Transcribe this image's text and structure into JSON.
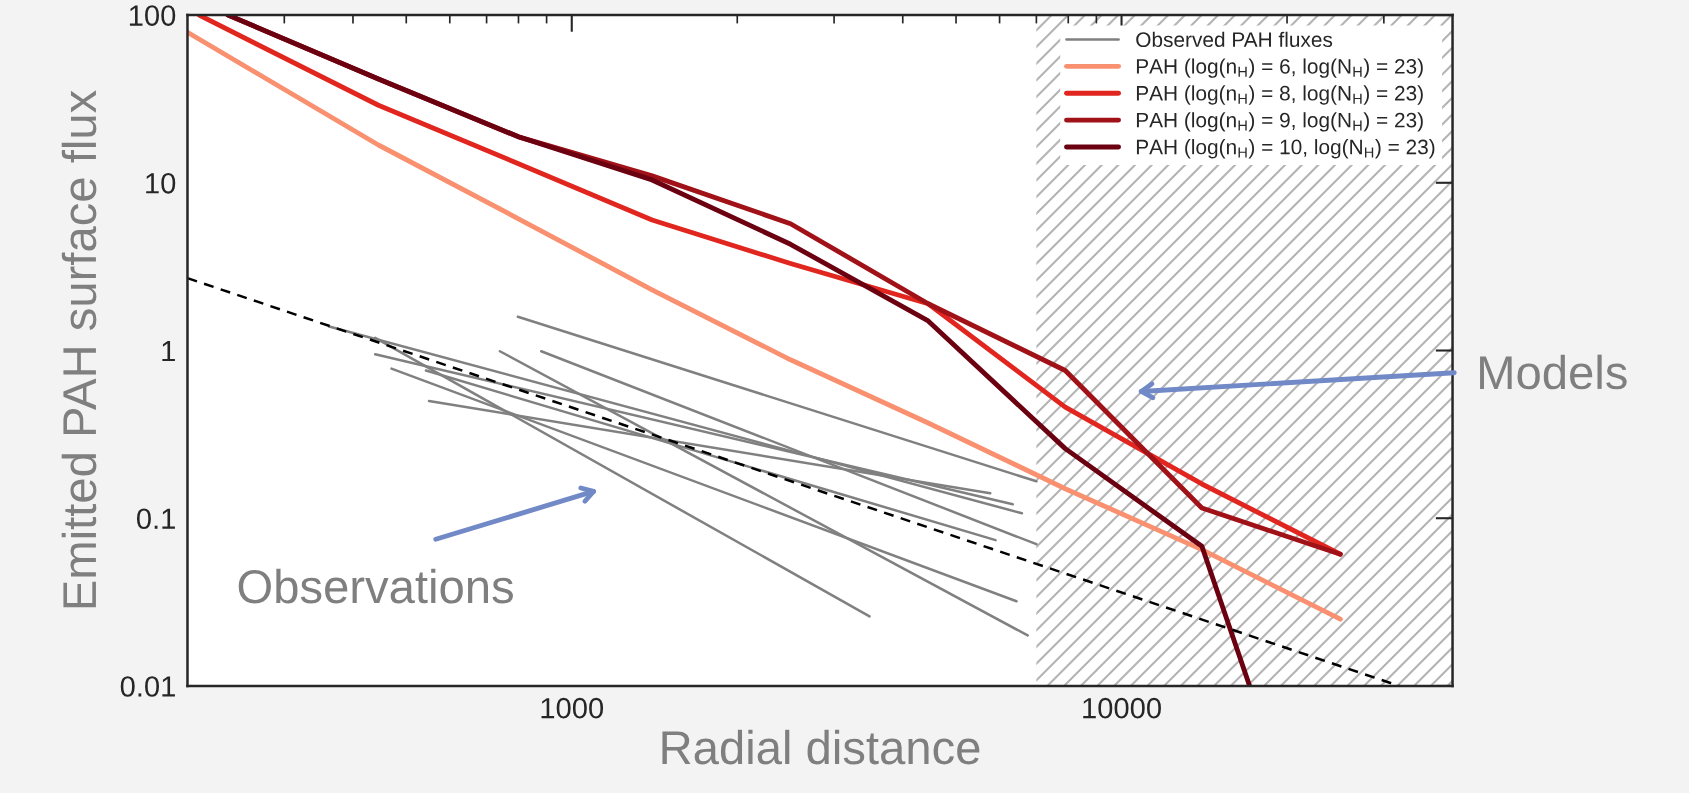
{
  "chart_data": {
    "type": "line",
    "xlabel": "Radial distance",
    "ylabel": "Emitted PAH surface flux",
    "log": "xy",
    "legend": "top right",
    "xlim": [
      200,
      40000
    ],
    "ylim": [
      0.01,
      100
    ],
    "xticks": [
      {
        "value": 300,
        "label": null
      },
      {
        "value": 400,
        "label": null
      },
      {
        "value": 500,
        "label": null
      },
      {
        "value": 600,
        "label": null
      },
      {
        "value": 700,
        "label": null
      },
      {
        "value": 800,
        "label": null
      },
      {
        "value": 900,
        "label": null
      },
      1000,
      {
        "value": 2000,
        "label": null
      },
      {
        "value": 3000,
        "label": null
      },
      {
        "value": 4000,
        "label": null
      },
      {
        "value": 5000,
        "label": null
      },
      {
        "value": 6000,
        "label": null
      },
      {
        "value": 7000,
        "label": null
      },
      {
        "value": 8000,
        "label": null
      },
      {
        "value": 9000,
        "label": null
      },
      10000,
      {
        "value": 20000,
        "label": null
      },
      {
        "value": 30000,
        "label": null
      }
    ],
    "yticks": [
      0.01,
      0.1,
      1,
      10,
      100
    ],
    "bands": [
      {
        "axis": "x",
        "from": 7000,
        "to": 40000,
        "color": "#b4b4b4"
      }
    ],
    "annotations": [
      "Observations",
      "Models"
    ],
    "series": [
      {
        "name": "Observed PAH fluxes",
        "color": "#808080",
        "x": [
          362,
          6590
        ],
        "values": [
          1.39,
          0.107
        ]
      },
      {
        "color": "#808080",
        "x": [
          439,
          6340
        ],
        "values": [
          0.95,
          0.121
        ]
      },
      {
        "color": "#808080",
        "x": [
          439,
          3480
        ],
        "values": [
          1.19,
          0.026
        ]
      },
      {
        "color": "#808080",
        "x": [
          470,
          6440
        ],
        "values": [
          0.78,
          0.032
        ]
      },
      {
        "color": "#808080",
        "x": [
          543,
          5900
        ],
        "values": [
          0.76,
          0.074
        ]
      },
      {
        "color": "#808080",
        "x": [
          550,
          5770
        ],
        "values": [
          0.5,
          0.141
        ]
      },
      {
        "color": "#808080",
        "x": [
          740,
          6750
        ],
        "values": [
          0.99,
          0.02
        ]
      },
      {
        "color": "#808080",
        "x": [
          880,
          7000
        ],
        "values": [
          0.99,
          0.07
        ]
      },
      {
        "color": "#808080",
        "x": [
          798,
          7000
        ],
        "values": [
          1.59,
          0.166
        ]
      },
      {
        "name": "PAH (log(n$_{H}$) = 6, log(N$_{H}$) = 23)",
        "color": "#f9906f",
        "x": [
          200,
          445,
          800,
          1400,
          2500,
          4450,
          7900,
          14000,
          25000
        ],
        "values": [
          79,
          16.8,
          6.1,
          2.3,
          0.88,
          0.37,
          0.15,
          0.065,
          0.025
        ]
      },
      {
        "name": "PAH (log(n$_{H}$) = 8, log(N$_{H}$) = 23)",
        "color": "#e0261f",
        "x": [
          210,
          445,
          800,
          1400,
          2500,
          4450,
          7900,
          14000,
          25000
        ],
        "values": [
          100,
          29,
          13,
          6.0,
          3.3,
          1.9,
          0.46,
          0.16,
          0.061
        ]
      },
      {
        "name": "PAH (log(n$_{H}$) = 9, log(N$_{H}$) = 23)",
        "color": "#a01218",
        "x": [
          237,
          445,
          800,
          1400,
          2500,
          4450,
          7900,
          14000,
          25000
        ],
        "values": [
          100,
          41.6,
          18.8,
          11,
          5.7,
          1.9,
          0.76,
          0.115,
          0.061
        ]
      },
      {
        "name": "PAH (log(n$_{H}$) = 10, log(N$_{H}$) = 23)",
        "color": "#6b0010",
        "x": [
          237,
          445,
          800,
          1400,
          2500,
          4450,
          7900,
          14000,
          17100
        ],
        "values": [
          100,
          41.6,
          18.8,
          10.4,
          4.3,
          1.5,
          0.26,
          0.068,
          0.01
        ]
      },
      {
        "color": "#000000",
        "line_style": "dashed",
        "x": [
          200,
          32000
        ],
        "values": [
          2.7,
          0.01
        ]
      }
    ]
  }
}
